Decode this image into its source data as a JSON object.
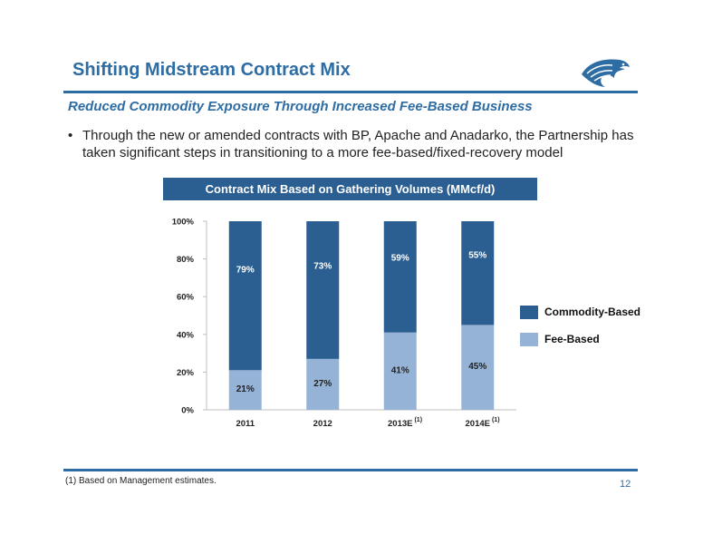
{
  "slide": {
    "title": "Shifting Midstream Contract Mix",
    "subtitle": "Reduced Commodity Exposure Through Increased Fee-Based Business",
    "bullet_symbol": "•",
    "bullet": "Through the new or amended contracts with BP, Apache and Anadarko, the Partnership has taken significant steps in transitioning to a more fee-based/fixed-recovery model",
    "chart_header": "Contract Mix Based on Gathering Volumes (MMcf/d)",
    "footnote": "(1) Based on Management estimates.",
    "page_number": "12",
    "logo_icon": "eagle-logo-icon"
  },
  "colors": {
    "accent": "#2e6da4",
    "commodity": "#2b5f91",
    "fee": "#95b3d7"
  },
  "chart_data": {
    "type": "bar",
    "stacked": true,
    "categories": [
      "2011",
      "2012",
      "2013E",
      "2014E"
    ],
    "category_notes": [
      "",
      "",
      "(1)",
      "(1)"
    ],
    "series": [
      {
        "name": "Fee-Based",
        "values": [
          21,
          27,
          41,
          45
        ],
        "labels": [
          "21%",
          "27%",
          "41%",
          "45%"
        ],
        "color": "#95b3d7"
      },
      {
        "name": "Commodity-Based",
        "values": [
          79,
          73,
          59,
          55
        ],
        "labels": [
          "79%",
          "73%",
          "59%",
          "55%"
        ],
        "color": "#2b5f91"
      }
    ],
    "legend_order": [
      "Commodity-Based",
      "Fee-Based"
    ],
    "legend_position": "right",
    "y_ticks": [
      "0%",
      "20%",
      "40%",
      "60%",
      "80%",
      "100%"
    ],
    "ylim": [
      0,
      100
    ],
    "grid": false
  }
}
